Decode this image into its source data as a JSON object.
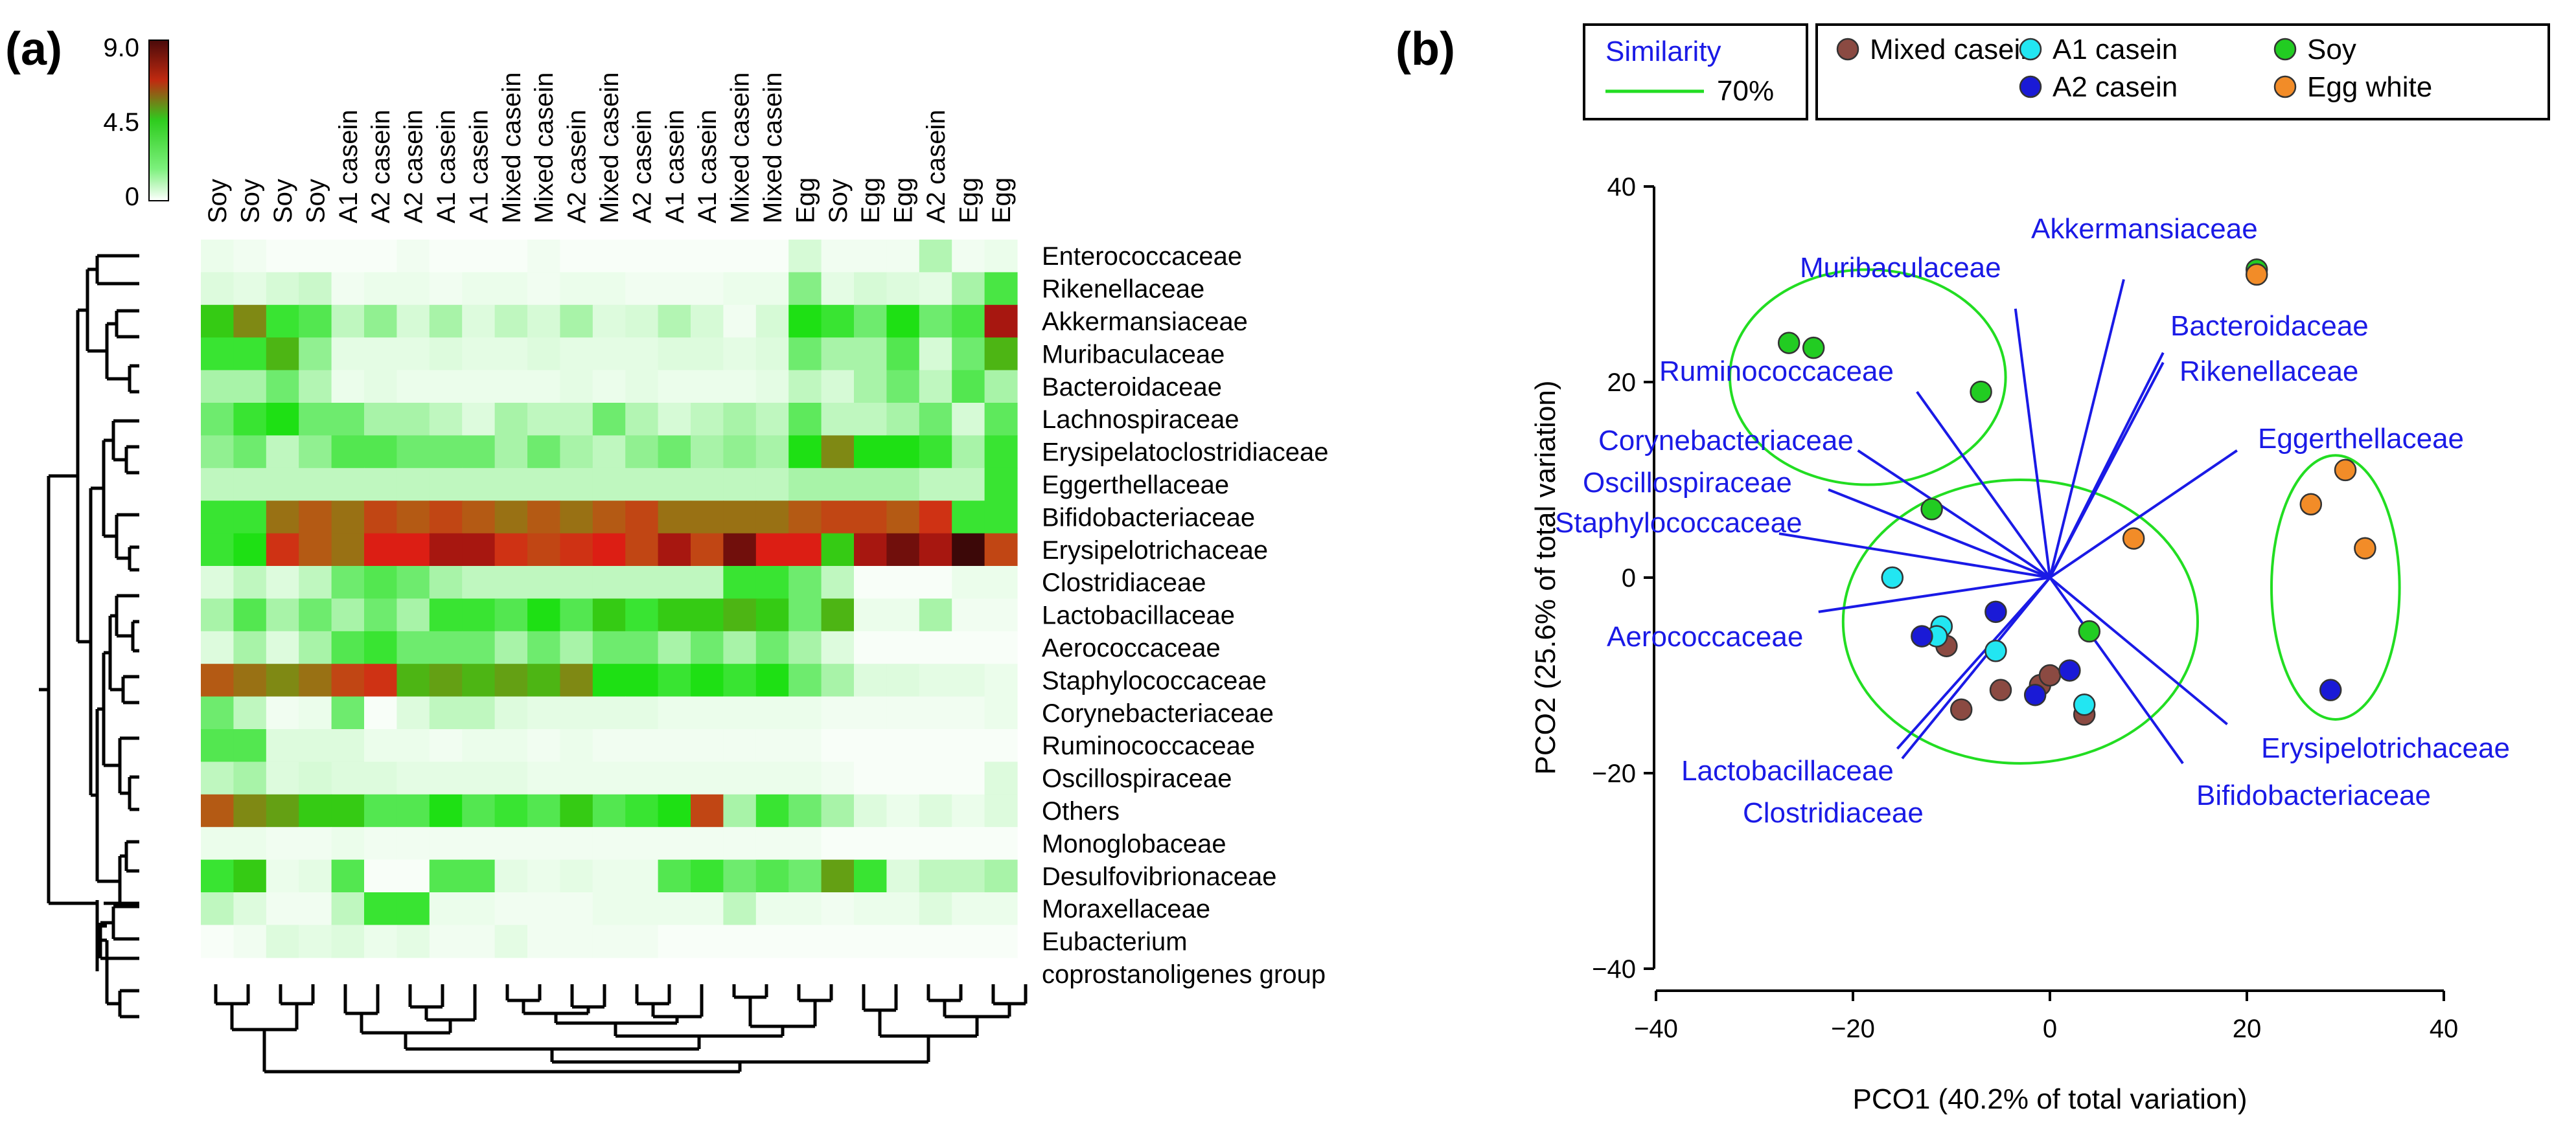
{
  "panels": {
    "a": "(a)",
    "b": "(b)"
  },
  "chart_data": [
    {
      "type": "heatmap",
      "panel": "(a)",
      "colorbar": {
        "max_label": "9.0",
        "mid_label": "4.5",
        "min_label": "0",
        "range": [
          0,
          9
        ]
      },
      "columns": [
        "Soy",
        "Soy",
        "Soy",
        "Soy",
        "A1 casein",
        "A2 casein",
        "A2 casein",
        "A1 casein",
        "A1 casein",
        "Mixed casein",
        "Mixed casein",
        "A2 casein",
        "Mixed casein",
        "A2 casein",
        "A1 casein",
        "A1 casein",
        "Mixed casein",
        "Mixed casein",
        "Egg",
        "Soy",
        "Egg",
        "Egg",
        "A2 casein",
        "Egg",
        "Egg"
      ],
      "rows": [
        "Enterococcaceae",
        "Rikenellaceae",
        "Akkermansiaceae",
        "Muribaculaceae",
        "Bacteroidaceae",
        "Lachnospiraceae",
        "Erysipelatoclostridiaceae",
        "Eggerthellaceae",
        "Bifidobacteriaceae",
        "Erysipelotrichaceae",
        "Clostridiaceae",
        "Lactobacillaceae",
        "Aerococcaceae",
        "Staphylococcaceae",
        "Corynebacteriaceae",
        "Ruminococcaceae",
        "Oscillospiraceae",
        "Others",
        "Monoglobaceae",
        "Desulfovibrionaceae",
        "Moraxellaceae",
        "Eubacterium",
        "coprostanoligenes group"
      ],
      "values": [
        [
          0.3,
          0.2,
          0.1,
          0.1,
          0.1,
          0.1,
          0.2,
          0.1,
          0.1,
          0.1,
          0.2,
          0.1,
          0.1,
          0.1,
          0.1,
          0.1,
          0.1,
          0.1,
          0.6,
          0.2,
          0.2,
          0.2,
          0.9,
          0.2,
          0.3
        ],
        [
          0.5,
          0.4,
          0.6,
          0.7,
          0.2,
          0.3,
          0.3,
          0.2,
          0.3,
          0.3,
          0.2,
          0.3,
          0.3,
          0.2,
          0.2,
          0.2,
          0.3,
          0.3,
          1.3,
          0.4,
          0.6,
          0.5,
          0.4,
          1.0,
          2.2
        ],
        [
          3.5,
          5.0,
          2.5,
          2.0,
          0.8,
          1.2,
          0.6,
          1.0,
          0.5,
          0.8,
          0.6,
          1.0,
          0.5,
          0.6,
          0.9,
          0.6,
          0.2,
          0.6,
          3.0,
          2.5,
          1.5,
          3.0,
          1.5,
          2.2,
          8.0
        ],
        [
          2.5,
          2.5,
          4.0,
          1.2,
          0.4,
          0.4,
          0.4,
          0.5,
          0.4,
          0.4,
          0.5,
          0.4,
          0.4,
          0.4,
          0.5,
          0.5,
          0.4,
          0.5,
          1.5,
          1.0,
          1.0,
          2.0,
          0.6,
          1.5,
          4.0
        ],
        [
          1.0,
          1.0,
          1.5,
          0.9,
          0.3,
          0.4,
          0.3,
          0.3,
          0.3,
          0.3,
          0.3,
          0.4,
          0.3,
          0.4,
          0.3,
          0.3,
          0.3,
          0.4,
          0.8,
          0.6,
          1.0,
          1.5,
          0.8,
          2.0,
          1.0
        ],
        [
          1.5,
          2.5,
          3.0,
          1.5,
          1.5,
          1.0,
          1.0,
          0.8,
          0.5,
          1.0,
          0.8,
          0.8,
          1.5,
          0.9,
          0.6,
          0.8,
          1.0,
          0.8,
          1.8,
          0.8,
          0.8,
          1.0,
          1.5,
          0.6,
          1.8
        ],
        [
          1.2,
          1.5,
          0.8,
          1.2,
          2.0,
          2.0,
          1.5,
          1.5,
          1.5,
          1.0,
          1.5,
          1.0,
          0.8,
          1.2,
          1.5,
          1.0,
          1.2,
          1.0,
          3.0,
          5.0,
          3.0,
          3.0,
          2.5,
          1.0,
          2.5
        ],
        [
          0.8,
          0.8,
          0.8,
          0.8,
          0.8,
          0.8,
          0.8,
          0.8,
          0.8,
          0.8,
          0.8,
          0.8,
          0.8,
          0.8,
          0.8,
          0.8,
          0.8,
          0.8,
          1.0,
          1.0,
          1.0,
          1.0,
          0.8,
          0.8,
          2.5
        ],
        [
          2.5,
          2.5,
          5.5,
          6.0,
          5.5,
          6.5,
          6.0,
          6.5,
          6.0,
          5.5,
          6.0,
          5.5,
          6.0,
          6.5,
          5.5,
          5.5,
          5.5,
          5.5,
          6.0,
          6.5,
          6.5,
          6.0,
          7.0,
          2.5,
          2.5
        ],
        [
          2.5,
          3.0,
          7.0,
          6.0,
          5.5,
          7.5,
          7.5,
          8.0,
          8.0,
          7.0,
          6.5,
          7.0,
          7.5,
          6.5,
          8.0,
          6.5,
          8.5,
          7.5,
          7.5,
          3.5,
          8.0,
          8.5,
          8.0,
          9.0,
          6.5
        ],
        [
          0.5,
          0.8,
          0.5,
          0.8,
          1.5,
          2.0,
          1.5,
          1.0,
          0.8,
          0.8,
          0.8,
          0.8,
          0.8,
          0.8,
          0.8,
          0.8,
          2.5,
          2.5,
          1.5,
          0.8,
          0.1,
          0.1,
          0.1,
          0.3,
          0.3
        ],
        [
          1.0,
          2.0,
          1.0,
          1.5,
          1.0,
          1.5,
          1.0,
          2.5,
          2.5,
          2.0,
          3.0,
          2.0,
          3.5,
          2.5,
          3.5,
          3.5,
          4.0,
          3.5,
          1.5,
          4.0,
          0.3,
          0.3,
          1.0,
          0.2,
          0.2
        ],
        [
          0.5,
          1.0,
          0.5,
          1.0,
          2.0,
          2.5,
          1.5,
          1.5,
          1.5,
          1.0,
          1.5,
          1.0,
          1.5,
          1.5,
          1.0,
          1.5,
          1.0,
          1.5,
          1.0,
          0.5,
          0.1,
          0.1,
          0.1,
          0.1,
          0.1
        ],
        [
          6.0,
          5.5,
          5.0,
          5.5,
          6.5,
          7.0,
          4.0,
          4.5,
          4.0,
          4.5,
          4.0,
          5.0,
          3.0,
          3.0,
          2.5,
          3.0,
          2.5,
          3.0,
          1.5,
          1.0,
          0.5,
          0.5,
          0.4,
          0.4,
          0.3
        ],
        [
          1.5,
          0.8,
          0.2,
          0.3,
          1.5,
          0.1,
          0.5,
          0.8,
          0.8,
          0.5,
          0.4,
          0.4,
          0.4,
          0.4,
          0.3,
          0.3,
          0.3,
          0.3,
          0.3,
          0.2,
          0.2,
          0.2,
          0.2,
          0.2,
          0.3
        ],
        [
          2.0,
          2.0,
          0.5,
          0.5,
          0.5,
          0.3,
          0.3,
          0.2,
          0.3,
          0.3,
          0.2,
          0.3,
          0.2,
          0.2,
          0.2,
          0.2,
          0.2,
          0.2,
          0.2,
          0.1,
          0.1,
          0.1,
          0.1,
          0.1,
          0.1
        ],
        [
          0.8,
          1.0,
          0.5,
          0.6,
          0.5,
          0.5,
          0.4,
          0.4,
          0.4,
          0.4,
          0.3,
          0.3,
          0.3,
          0.3,
          0.3,
          0.3,
          0.3,
          0.3,
          0.3,
          0.2,
          0.1,
          0.1,
          0.1,
          0.1,
          0.5
        ],
        [
          6.0,
          5.0,
          4.5,
          3.5,
          3.5,
          2.0,
          2.0,
          3.0,
          2.0,
          2.5,
          2.0,
          3.5,
          2.0,
          2.5,
          3.0,
          6.5,
          1.0,
          2.5,
          1.5,
          1.0,
          0.5,
          0.3,
          0.5,
          0.3,
          0.5
        ],
        [
          0.3,
          0.3,
          0.2,
          0.2,
          0.3,
          0.2,
          0.2,
          0.2,
          0.2,
          0.2,
          0.2,
          0.2,
          0.2,
          0.2,
          0.2,
          0.2,
          0.2,
          0.2,
          0.2,
          0.1,
          0.1,
          0.1,
          0.1,
          0.1,
          0.1
        ],
        [
          2.5,
          3.5,
          0.3,
          0.4,
          2.0,
          0.1,
          0.1,
          2.0,
          2.0,
          0.4,
          0.3,
          0.4,
          0.3,
          0.3,
          2.0,
          2.5,
          1.5,
          2.0,
          1.5,
          4.5,
          2.5,
          0.5,
          0.8,
          0.8,
          1.0
        ],
        [
          0.8,
          0.5,
          0.2,
          0.2,
          0.8,
          2.5,
          2.5,
          0.3,
          0.3,
          0.2,
          0.2,
          0.2,
          0.3,
          0.3,
          0.3,
          0.3,
          0.8,
          0.3,
          0.3,
          0.2,
          0.3,
          0.3,
          0.5,
          0.3,
          0.3
        ],
        [
          0.1,
          0.2,
          0.5,
          0.4,
          0.5,
          0.3,
          0.4,
          0.2,
          0.2,
          0.4,
          0.2,
          0.2,
          0.2,
          0.2,
          0.1,
          0.1,
          0.1,
          0.1,
          0.1,
          0.1,
          0.1,
          0.1,
          0.1,
          0.1,
          0.1
        ],
        [
          0.0,
          0.0,
          0.0,
          0.0,
          0.0,
          0.0,
          0.0,
          0.0,
          0.0,
          0.0,
          0.0,
          0.0,
          0.0,
          0.0,
          0.0,
          0.0,
          0.0,
          0.0,
          0.0,
          0.0,
          0.0,
          0.0,
          0.0,
          0.0,
          0.0
        ]
      ]
    },
    {
      "type": "scatter",
      "panel": "(b)",
      "xlabel": "PCO1 (40.2% of total variation)",
      "ylabel": "PCO2 (25.6% of total variation)",
      "xlim": [
        -40,
        40
      ],
      "ylim": [
        -40,
        40
      ],
      "xticks": [
        "−40",
        "−20",
        "0",
        "20",
        "40"
      ],
      "yticks": [
        "40",
        "20",
        "0",
        "−20",
        "−40"
      ],
      "xtick_values": [
        -40,
        -20,
        0,
        20,
        40
      ],
      "ytick_values": [
        40,
        20,
        0,
        -20,
        -40
      ],
      "similarity_legend": {
        "title": "Similarity",
        "label": "70%",
        "color": "#22dd22"
      },
      "group_legend": [
        {
          "name": "Mixed casein",
          "color": "#8b4a42"
        },
        {
          "name": "A1 casein",
          "color": "#22e6f2"
        },
        {
          "name": "Soy",
          "color": "#22cc22"
        },
        {
          "name": "A2 casein",
          "color": "#1a1ad6"
        },
        {
          "name": "Egg white",
          "color": "#f28c28"
        }
      ],
      "series": [
        {
          "name": "Mixed casein",
          "points": [
            [
              -10.5,
              -7
            ],
            [
              -9,
              -13.5
            ],
            [
              -5,
              -11.5
            ],
            [
              -1,
              -11
            ],
            [
              0,
              -10
            ],
            [
              3.5,
              -14
            ]
          ]
        },
        {
          "name": "A1 casein",
          "points": [
            [
              -16,
              0
            ],
            [
              -11,
              -5
            ],
            [
              -11.5,
              -6
            ],
            [
              -5.5,
              -7.5
            ],
            [
              3.5,
              -13
            ]
          ]
        },
        {
          "name": "Soy",
          "points": [
            [
              -26.5,
              24
            ],
            [
              -24,
              23.5
            ],
            [
              -7,
              19
            ],
            [
              -12,
              7
            ],
            [
              4,
              -5.5
            ],
            [
              21,
              31.5
            ]
          ]
        },
        {
          "name": "A2 casein",
          "points": [
            [
              -5.5,
              -3.5
            ],
            [
              -13,
              -6
            ],
            [
              2,
              -9.5
            ],
            [
              -1.5,
              -12
            ],
            [
              28.5,
              -11.5
            ]
          ]
        },
        {
          "name": "Egg white",
          "points": [
            [
              8.5,
              4
            ],
            [
              21,
              31
            ],
            [
              26.5,
              7.5
            ],
            [
              30,
              11
            ],
            [
              32,
              3
            ]
          ]
        }
      ],
      "clusters": [
        {
          "cx": -18.5,
          "cy": 20.5,
          "rx": 14,
          "ry": 11
        },
        {
          "cx": -3,
          "cy": -4.5,
          "rx": 18,
          "ry": 14.5
        },
        {
          "cx": 29,
          "cy": -1,
          "rx": 6.5,
          "ry": 13.5
        }
      ],
      "vectors": [
        {
          "label": "Akkermansiaceae",
          "x": 7.5,
          "y": 30.5
        },
        {
          "label": "Muribaculaceae",
          "x": -3.5,
          "y": 27.5
        },
        {
          "label": "Bacteroidaceae",
          "x": 11.5,
          "y": 22
        },
        {
          "label": "Rikenellaceae",
          "x": 11.5,
          "y": 23
        },
        {
          "label": "Ruminococcaceae",
          "x": -13.5,
          "y": 19
        },
        {
          "label": "Corynebacteriaceae",
          "x": -19.5,
          "y": 13
        },
        {
          "label": "Eggerthellaceae",
          "x": 19,
          "y": 13
        },
        {
          "label": "Oscillospiraceae",
          "x": -22.5,
          "y": 9
        },
        {
          "label": "Staphylococcaceae",
          "x": -27.5,
          "y": 4.5
        },
        {
          "label": "Aerococcaceae",
          "x": -23.5,
          "y": -3.5
        },
        {
          "label": "Lactobacillaceae",
          "x": -15.5,
          "y": -17.5
        },
        {
          "label": "Clostridiaceae",
          "x": -15,
          "y": -18.5
        },
        {
          "label": "Erysipelotrichaceae",
          "x": 18,
          "y": -15
        },
        {
          "label": "Bifidobacteriaceae",
          "x": 13.5,
          "y": -19
        }
      ]
    }
  ]
}
